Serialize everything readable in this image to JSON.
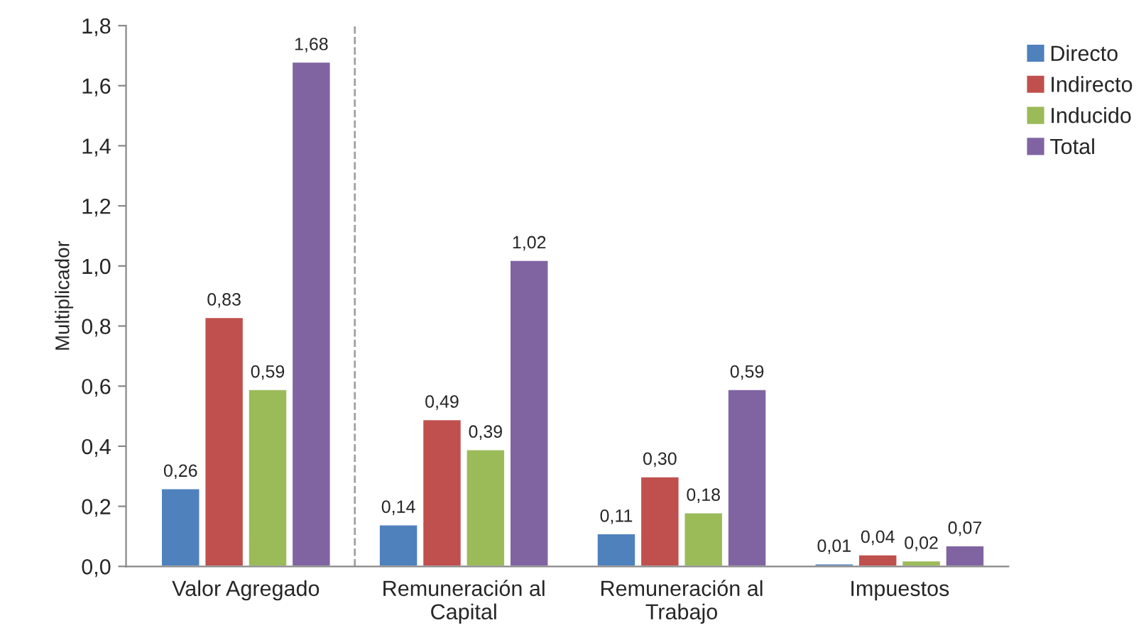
{
  "chart_data": {
    "type": "bar",
    "ylabel": "Multiplicador",
    "categories": [
      "Valor Agregado",
      "Remuneración al\nCapital",
      "Remuneración al\nTrabajo",
      "Impuestos"
    ],
    "series": [
      {
        "name": "Directo",
        "color": "#4f81bd",
        "values": [
          0.26,
          0.14,
          0.11,
          0.01
        ]
      },
      {
        "name": "Indirecto",
        "color": "#c0504d",
        "values": [
          0.83,
          0.49,
          0.3,
          0.04
        ]
      },
      {
        "name": "Inducido",
        "color": "#9bbb59",
        "values": [
          0.59,
          0.39,
          0.18,
          0.02
        ]
      },
      {
        "name": "Total",
        "color": "#8064a2",
        "values": [
          1.68,
          1.02,
          0.59,
          0.07
        ]
      }
    ],
    "ylim": [
      0,
      1.8
    ],
    "yticks": [
      {
        "value": 0,
        "label": "0,0"
      },
      {
        "value": 0.2,
        "label": "0,2"
      },
      {
        "value": 0.4,
        "label": "0,4"
      },
      {
        "value": 0.6,
        "label": "0,6"
      },
      {
        "value": 0.8,
        "label": "0,8"
      },
      {
        "value": 1.0,
        "label": "1,0"
      },
      {
        "value": 1.2,
        "label": "1,2"
      },
      {
        "value": 1.4,
        "label": "1,4"
      },
      {
        "value": 1.6,
        "label": "1,6"
      },
      {
        "value": 1.8,
        "label": "1,8"
      }
    ],
    "value_labels": [
      [
        "0,26",
        "0,14",
        "0,11",
        "0,01"
      ],
      [
        "0,83",
        "0,49",
        "0,30",
        "0,04"
      ],
      [
        "0,59",
        "0,39",
        "0,18",
        "0,02"
      ],
      [
        "1,68",
        "1,02",
        "0,59",
        "0,07"
      ]
    ],
    "legend": "top right",
    "grid": false
  }
}
